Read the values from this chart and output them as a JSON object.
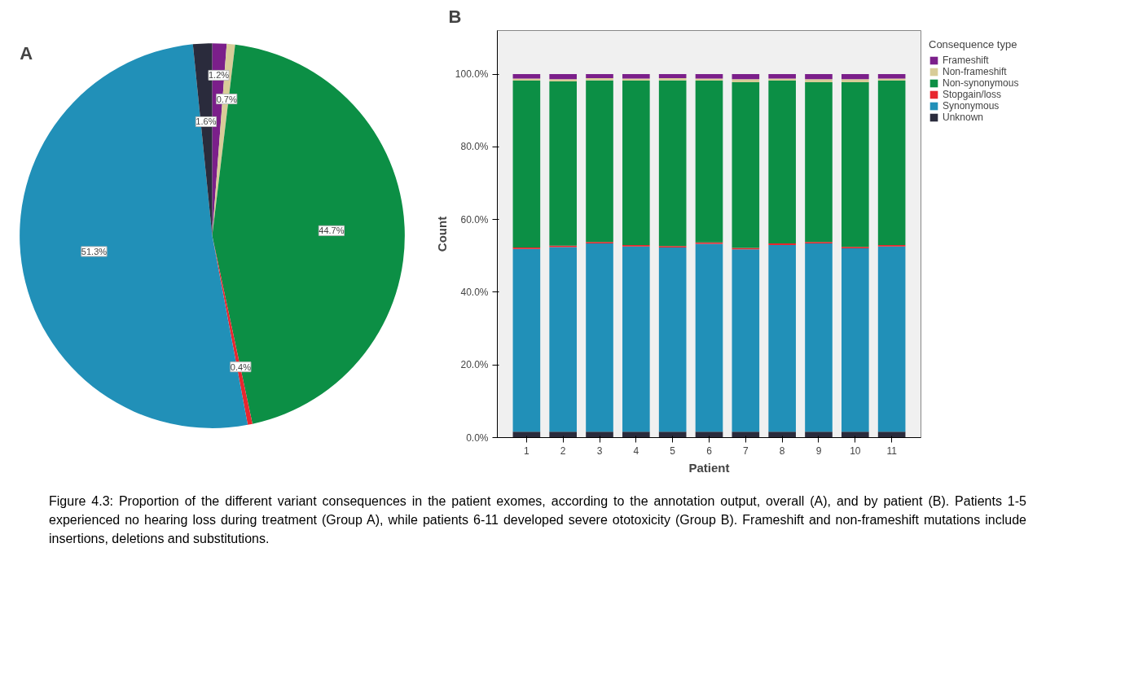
{
  "chart_data": [
    {
      "type": "pie",
      "categories": [
        null,
        null,
        null,
        null,
        null,
        null
      ],
      "values": [
        1.2,
        0.7,
        44.7,
        0.4,
        51.3,
        1.6
      ],
      "colors": [
        "#7b1f8a",
        "#d8cc98",
        "#0c8f45",
        "#e8272f",
        "#2190b8",
        "#2a2b3c"
      ],
      "data_labels": true,
      "value_labels": [
        "1.2%",
        "0.7%",
        "44.7%",
        "0.4%",
        "51.3%",
        "1.6%"
      ],
      "annotations": [
        "A",
        "Figure 4.3: Proportion of the different variant consequences in the patient exomes, according to the annotation output, overall (A), and by patient (B). Patients 1-5 experienced no hearing loss during treatment (Group A), while patients 6-11 developed severe ototoxicity (Group B). Frameshift and non-frameshift mutations include insertions, deletions and substitutions."
      ]
    },
    {
      "type": "bar",
      "stacked": true,
      "xlabel": "Patient",
      "ylabel": "Count",
      "legend_title": "Consequence type",
      "legend": "right",
      "grid": false,
      "annotations": [
        "B"
      ],
      "categories": [
        "1",
        "2",
        "3",
        "4",
        "5",
        "6",
        "7",
        "8",
        "9",
        "10",
        "11"
      ],
      "ylim": [
        0,
        112
      ],
      "yticks": [
        {
          "value": 0,
          "label": "0.0%"
        },
        {
          "value": 20,
          "label": "20.0%"
        },
        {
          "value": 40,
          "label": "40.0%"
        },
        {
          "value": 60,
          "label": "60.0%"
        },
        {
          "value": 80,
          "label": "80.0%"
        },
        {
          "value": 100,
          "label": "100.0%"
        }
      ],
      "series": [
        {
          "name": "Unknown",
          "color": "#2a2b3c",
          "values": [
            1.6,
            1.6,
            1.6,
            1.6,
            1.6,
            1.6,
            1.6,
            1.6,
            1.6,
            1.6,
            1.6
          ]
        },
        {
          "name": "Synonymous",
          "color": "#2190b8",
          "values": [
            50.3,
            50.8,
            51.8,
            51.0,
            50.7,
            51.7,
            50.2,
            51.4,
            51.8,
            50.5,
            51.0
          ]
        },
        {
          "name": "Stopgain/loss",
          "color": "#e8272f",
          "values": [
            0.4,
            0.4,
            0.4,
            0.4,
            0.4,
            0.4,
            0.4,
            0.4,
            0.4,
            0.4,
            0.4
          ]
        },
        {
          "name": "Non-synonymous",
          "color": "#0c8f45",
          "values": [
            45.9,
            45.2,
            44.5,
            45.2,
            45.6,
            44.5,
            45.6,
            44.8,
            44.0,
            45.3,
            45.2
          ]
        },
        {
          "name": "Non-frameshift",
          "color": "#d8cc98",
          "values": [
            0.6,
            0.6,
            0.6,
            0.6,
            0.6,
            0.6,
            0.8,
            0.6,
            0.8,
            0.8,
            0.6
          ]
        },
        {
          "name": "Frameshift",
          "color": "#7b1f8a",
          "values": [
            1.2,
            1.4,
            1.1,
            1.2,
            1.1,
            1.2,
            1.4,
            1.2,
            1.4,
            1.4,
            1.2
          ]
        }
      ]
    }
  ]
}
